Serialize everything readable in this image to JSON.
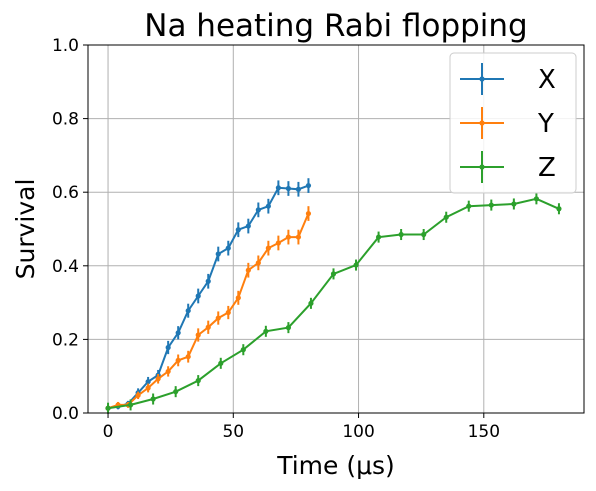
{
  "chart_data": {
    "type": "line",
    "title": "Na heating Rabi flopping",
    "xlabel": "Time (μs)",
    "ylabel": "Survival",
    "xlim": [
      -8,
      190
    ],
    "ylim": [
      0,
      1.0
    ],
    "xticks": [
      0,
      50,
      100,
      150
    ],
    "yticks": [
      0.0,
      0.2,
      0.4,
      0.6,
      0.8,
      1.0
    ],
    "xtick_labels": [
      "0",
      "50",
      "100",
      "150"
    ],
    "ytick_labels": [
      "0.0",
      "0.2",
      "0.4",
      "0.6",
      "0.8",
      "1.0"
    ],
    "grid": true,
    "legend_position": "top-right",
    "series": [
      {
        "name": "X",
        "color": "#1f77b4",
        "x": [
          0,
          4,
          8,
          12,
          16,
          20,
          24,
          28,
          32,
          36,
          40,
          44,
          48,
          52,
          56,
          60,
          64,
          68,
          72,
          76,
          80
        ],
        "y": [
          0.013,
          0.018,
          0.025,
          0.055,
          0.085,
          0.103,
          0.178,
          0.218,
          0.278,
          0.318,
          0.358,
          0.432,
          0.448,
          0.498,
          0.508,
          0.552,
          0.562,
          0.612,
          0.61,
          0.608,
          0.618
        ],
        "err": [
          0.008,
          0.008,
          0.008,
          0.012,
          0.013,
          0.014,
          0.018,
          0.018,
          0.019,
          0.02,
          0.02,
          0.02,
          0.02,
          0.02,
          0.02,
          0.02,
          0.02,
          0.02,
          0.02,
          0.02,
          0.02
        ]
      },
      {
        "name": "Y",
        "color": "#ff7f0e",
        "x": [
          0,
          4,
          8,
          12,
          16,
          20,
          24,
          28,
          32,
          36,
          40,
          44,
          48,
          52,
          56,
          60,
          64,
          68,
          72,
          76,
          80
        ],
        "y": [
          0.013,
          0.022,
          0.022,
          0.048,
          0.068,
          0.093,
          0.113,
          0.143,
          0.153,
          0.212,
          0.233,
          0.258,
          0.273,
          0.313,
          0.388,
          0.408,
          0.448,
          0.462,
          0.478,
          0.478,
          0.542
        ],
        "err": [
          0.008,
          0.008,
          0.008,
          0.01,
          0.012,
          0.013,
          0.014,
          0.016,
          0.016,
          0.018,
          0.018,
          0.018,
          0.018,
          0.019,
          0.02,
          0.02,
          0.02,
          0.02,
          0.02,
          0.02,
          0.02
        ]
      },
      {
        "name": "Z",
        "color": "#2ca02c",
        "x": [
          0,
          9,
          18,
          27,
          36,
          45,
          54,
          63,
          72,
          81,
          90,
          99,
          108,
          117,
          126,
          135,
          144,
          153,
          162,
          171,
          180
        ],
        "y": [
          0.013,
          0.022,
          0.038,
          0.058,
          0.088,
          0.135,
          0.172,
          0.222,
          0.232,
          0.298,
          0.378,
          0.402,
          0.478,
          0.485,
          0.485,
          0.532,
          0.562,
          0.565,
          0.568,
          0.582,
          0.555
        ]
      }
    ]
  }
}
